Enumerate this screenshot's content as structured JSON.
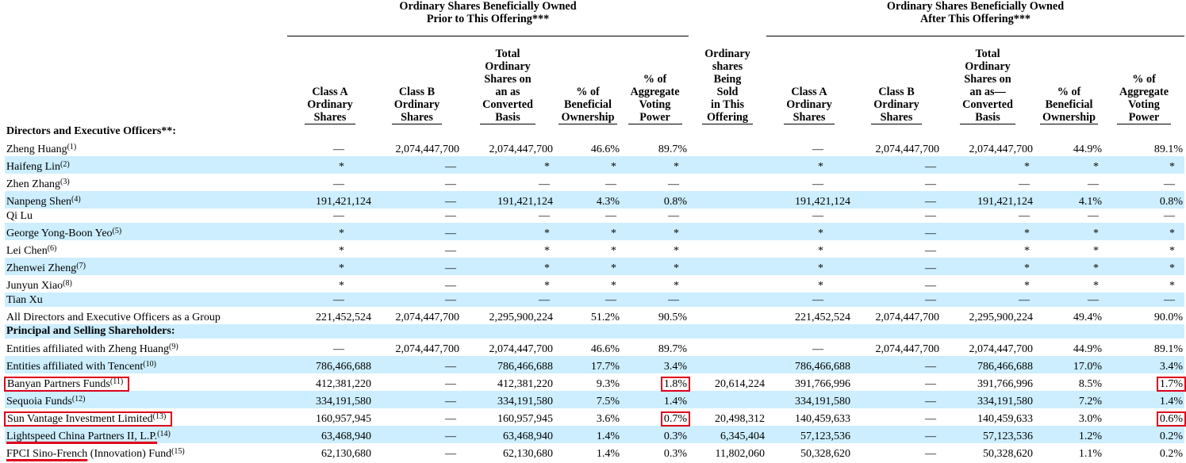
{
  "groups": {
    "prior_line1": "Ordinary Shares Beneficially Owned",
    "prior_line2": "Prior to This Offering***",
    "after_line1": "Ordinary Shares Beneficially Owned",
    "after_line2": "After This Offering***"
  },
  "columns": {
    "class_a": [
      "Class A",
      "Ordinary",
      "Shares"
    ],
    "class_b": [
      "Class B",
      "Ordinary",
      "Shares"
    ],
    "total_prior": [
      "Total",
      "Ordinary",
      "Shares on",
      "an as",
      "Converted",
      "Basis"
    ],
    "pct_beneficial": [
      "% of",
      "Beneficial",
      "Ownership"
    ],
    "pct_voting": [
      "% of",
      "Aggregate",
      "Voting",
      "Power"
    ],
    "sold": [
      "Ordinary",
      "shares",
      "Being",
      "Sold",
      "in This",
      "Offering"
    ],
    "class_a_after": [
      "Class A",
      "Ordinary",
      "Shares"
    ],
    "class_b_after": [
      "Class B",
      "Ordinary",
      "Shares"
    ],
    "total_after": [
      "Total",
      "Ordinary",
      "Shares on",
      "an as—",
      "Converted",
      "Basis"
    ],
    "pct_beneficial_after": [
      "% of",
      "Beneficial",
      "Ownership"
    ],
    "pct_voting_after": [
      "% of",
      "Aggregate",
      "Voting",
      "Power"
    ]
  },
  "sections": {
    "directors": "Directors and Executive Officers**:",
    "principal": "Principal and Selling Shareholders:"
  },
  "rows": [
    {
      "name": "Zheng Huang",
      "note": "(1)",
      "a": "—",
      "b": "2,074,447,700",
      "t": "2,074,447,700",
      "pb": "46.6%",
      "pv": "89.7%",
      "sold": "",
      "a2": "—",
      "b2": "2,074,447,700",
      "t2": "2,074,447,700",
      "pb2": "44.9%",
      "pv2": "89.1%"
    },
    {
      "name": "Haifeng Lin",
      "note": "(2)",
      "a": "*",
      "b": "—",
      "t": "*",
      "pb": "*",
      "pv": "*",
      "sold": "",
      "a2": "*",
      "b2": "—",
      "t2": "*",
      "pb2": "*",
      "pv2": "*"
    },
    {
      "name": "Zhen Zhang",
      "note": "(3)",
      "a": "—",
      "b": "—",
      "t": "—",
      "pb": "—",
      "pv": "—",
      "sold": "",
      "a2": "—",
      "b2": "—",
      "t2": "—",
      "pb2": "—",
      "pv2": "—"
    },
    {
      "name": "Nanpeng Shen",
      "note": "(4)",
      "a": "191,421,124",
      "b": "—",
      "t": "191,421,124",
      "pb": "4.3%",
      "pv": "0.8%",
      "sold": "",
      "a2": "191,421,124",
      "b2": "—",
      "t2": "191,421,124",
      "pb2": "4.1%",
      "pv2": "0.8%"
    },
    {
      "name": "Qi Lu",
      "note": "",
      "a": "—",
      "b": "—",
      "t": "—",
      "pb": "—",
      "pv": "—",
      "sold": "",
      "a2": "—",
      "b2": "—",
      "t2": "—",
      "pb2": "—",
      "pv2": "—"
    },
    {
      "name": "George Yong-Boon Yeo",
      "note": "(5)",
      "a": "*",
      "b": "—",
      "t": "*",
      "pb": "*",
      "pv": "*",
      "sold": "",
      "a2": "*",
      "b2": "—",
      "t2": "*",
      "pb2": "*",
      "pv2": "*"
    },
    {
      "name": "Lei Chen",
      "note": "(6)",
      "a": "*",
      "b": "—",
      "t": "*",
      "pb": "*",
      "pv": "*",
      "sold": "",
      "a2": "*",
      "b2": "—",
      "t2": "*",
      "pb2": "*",
      "pv2": "*"
    },
    {
      "name": "Zhenwei Zheng",
      "note": "(7)",
      "a": "*",
      "b": "—",
      "t": "*",
      "pb": "*",
      "pv": "*",
      "sold": "",
      "a2": "*",
      "b2": "—",
      "t2": "*",
      "pb2": "*",
      "pv2": "*"
    },
    {
      "name": "Junyun Xiao",
      "note": "(8)",
      "a": "*",
      "b": "—",
      "t": "*",
      "pb": "*",
      "pv": "*",
      "sold": "",
      "a2": "*",
      "b2": "—",
      "t2": "*",
      "pb2": "*",
      "pv2": "*"
    },
    {
      "name": "Tian Xu",
      "note": "",
      "a": "—",
      "b": "—",
      "t": "—",
      "pb": "—",
      "pv": "—",
      "sold": "",
      "a2": "—",
      "b2": "—",
      "t2": "—",
      "pb2": "—",
      "pv2": "—"
    },
    {
      "name": "All Directors and Executive Officers as a Group",
      "note": "",
      "a": "221,452,524",
      "b": "2,074,447,700",
      "t": "2,295,900,224",
      "pb": "51.2%",
      "pv": "90.5%",
      "sold": "",
      "a2": "221,452,524",
      "b2": "2,074,447,700",
      "t2": "2,295,900,224",
      "pb2": "49.4%",
      "pv2": "90.0%"
    },
    {
      "name": "Entities affiliated with Zheng Huang",
      "note": "(9)",
      "a": "—",
      "b": "2,074,447,700",
      "t": "2,074,447,700",
      "pb": "46.6%",
      "pv": "89.7%",
      "sold": "",
      "a2": "—",
      "b2": "2,074,447,700",
      "t2": "2,074,447,700",
      "pb2": "44.9%",
      "pv2": "89.1%"
    },
    {
      "name": "Entities affiliated with Tencent",
      "note": "(10)",
      "a": "786,466,688",
      "b": "—",
      "t": "786,466,688",
      "pb": "17.7%",
      "pv": "3.4%",
      "sold": "",
      "a2": "786,466,688",
      "b2": "—",
      "t2": "786,466,688",
      "pb2": "17.0%",
      "pv2": "3.4%"
    },
    {
      "name": "Banyan Partners Funds",
      "note": "(11)",
      "a": "412,381,220",
      "b": "—",
      "t": "412,381,220",
      "pb": "9.3%",
      "pv": "1.8%",
      "sold": "20,614,224",
      "a2": "391,766,996",
      "b2": "—",
      "t2": "391,766,996",
      "pb2": "8.5%",
      "pv2": "1.7%"
    },
    {
      "name": "Sequoia Funds",
      "note": "(12)",
      "a": "334,191,580",
      "b": "—",
      "t": "334,191,580",
      "pb": "7.5%",
      "pv": "1.4%",
      "sold": "",
      "a2": "334,191,580",
      "b2": "—",
      "t2": "334,191,580",
      "pb2": "7.2%",
      "pv2": "1.4%"
    },
    {
      "name": "Sun Vantage Investment Limited",
      "note": "(13)",
      "a": "160,957,945",
      "b": "—",
      "t": "160,957,945",
      "pb": "3.6%",
      "pv": "0.7%",
      "sold": "20,498,312",
      "a2": "140,459,633",
      "b2": "—",
      "t2": "140,459,633",
      "pb2": "3.0%",
      "pv2": "0.6%"
    },
    {
      "name": "Lightspeed China Partners II, L.P.",
      "note": "(14)",
      "a": "63,468,940",
      "b": "—",
      "t": "63,468,940",
      "pb": "1.4%",
      "pv": "0.3%",
      "sold": "6,345,404",
      "a2": "57,123,536",
      "b2": "—",
      "t2": "57,123,536",
      "pb2": "1.2%",
      "pv2": "0.2%"
    },
    {
      "name_underlined": "FPCI Sino-French",
      "name_rest": " (Innovation) Fund",
      "note": "(15)",
      "a": "62,130,680",
      "b": "—",
      "t": "62,130,680",
      "pb": "1.4%",
      "pv": "0.3%",
      "sold": "11,802,060",
      "a2": "50,328,620",
      "b2": "—",
      "t2": "50,328,620",
      "pb2": "1.1%",
      "pv2": "0.2%"
    }
  ],
  "colors": {
    "row_shade": "#cceeff",
    "highlight": "#e0001b"
  }
}
